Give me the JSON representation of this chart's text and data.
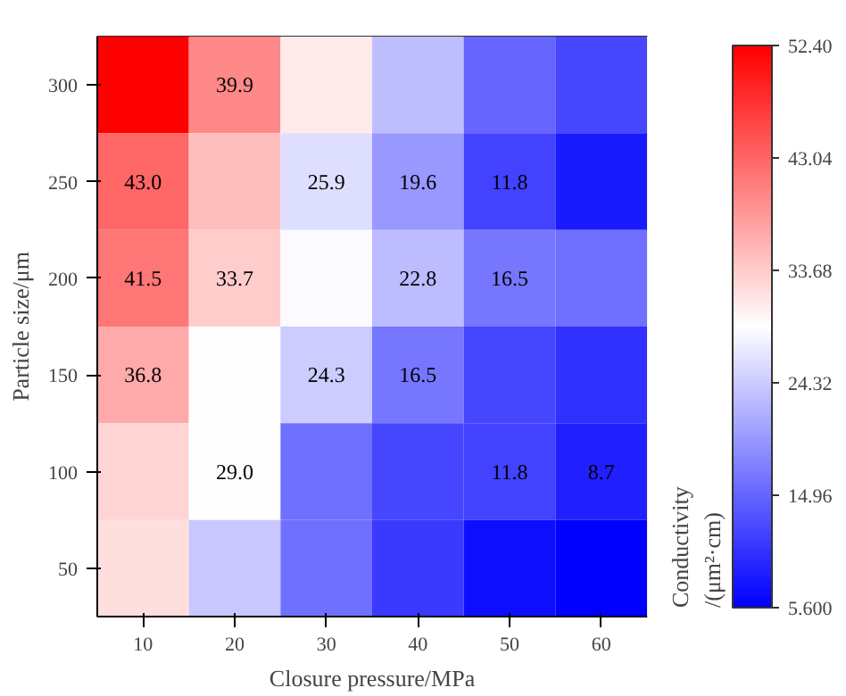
{
  "chart_data": {
    "type": "heatmap",
    "xlabel": "Closure pressure/MPa",
    "ylabel": "Particle size/μm",
    "clabel": "Conductivity\n/(μm²·cm)",
    "categories": [
      "10",
      "20",
      "30",
      "40",
      "50",
      "60"
    ],
    "y_categories": [
      "300",
      "250",
      "200",
      "150",
      "100",
      "50"
    ],
    "cells": [
      [
        52.4,
        39.9,
        31,
        23,
        15,
        12
      ],
      [
        43.0,
        35,
        25.9,
        19.6,
        11.8,
        8
      ],
      [
        41.5,
        33.7,
        28.5,
        22.8,
        16.5,
        16
      ],
      [
        36.8,
        29,
        24.3,
        16.5,
        12,
        10
      ],
      [
        33,
        29.0,
        16,
        12,
        11.8,
        8.7
      ],
      [
        32,
        24,
        16,
        11,
        7,
        5.6
      ]
    ],
    "cell_labels": [
      [
        null,
        "39.9",
        null,
        null,
        null,
        null
      ],
      [
        "43.0",
        null,
        "25.9",
        "19.6",
        "11.8",
        null
      ],
      [
        "41.5",
        "33.7",
        null,
        "22.8",
        "16.5",
        null
      ],
      [
        "36.8",
        null,
        "24.3",
        "16.5",
        null,
        null
      ],
      [
        null,
        "29.0",
        null,
        null,
        "11.8",
        "8.7"
      ],
      [
        null,
        null,
        null,
        null,
        null,
        null
      ]
    ],
    "colors": [
      "#0000ff",
      "#ffffff",
      "#ff0000"
    ],
    "clim": [
      5.6,
      52.4
    ],
    "cticks": [
      {
        "value": 5.6,
        "label": "5.600"
      },
      14.96,
      24.32,
      33.68,
      43.04,
      {
        "value": 52.4,
        "label": "52.40"
      }
    ]
  }
}
